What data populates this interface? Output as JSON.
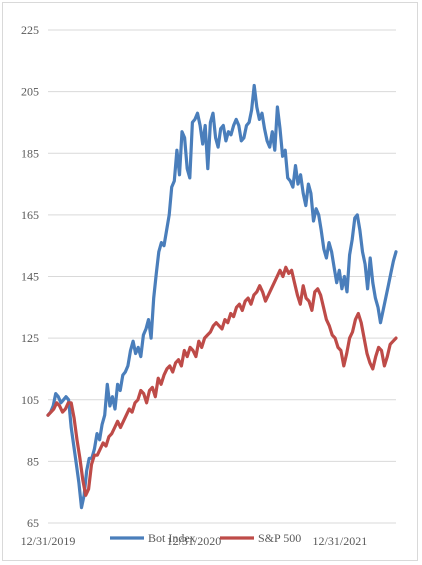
{
  "chart_data": {
    "type": "line",
    "title": "",
    "xlabel": "",
    "ylabel": "",
    "ylim": [
      65,
      225
    ],
    "y_ticks": [
      65,
      85,
      105,
      125,
      145,
      165,
      185,
      205,
      225
    ],
    "y_tick_labels": [
      "65",
      "85",
      "105",
      "125",
      "145",
      "165",
      "185",
      "205",
      "225"
    ],
    "x_tick_labels": [
      "12/31/2019",
      "12/31/2020",
      "12/31/2021"
    ],
    "x_tick_positions": [
      0,
      52,
      104
    ],
    "x_max_period": 124,
    "grid": true,
    "legend_position": "bottom",
    "series": [
      {
        "name": "Bot Index",
        "color": "#4a7ebb",
        "values": [
          100,
          101,
          103,
          107,
          106,
          104,
          105,
          106,
          105,
          96,
          90,
          84,
          78,
          70,
          74,
          82,
          86,
          86,
          89,
          94,
          92,
          97,
          100,
          110,
          103,
          106,
          102,
          110,
          108,
          113,
          114,
          116,
          121,
          124,
          120,
          122,
          119,
          126,
          128,
          131,
          125,
          138,
          146,
          153,
          156,
          155,
          160,
          165,
          174,
          176,
          186,
          178,
          192,
          190,
          180,
          177,
          195,
          196,
          198,
          194,
          188,
          194,
          180,
          195,
          198,
          190,
          187,
          193,
          194,
          189,
          192,
          191,
          194,
          196,
          194,
          189,
          190,
          194,
          195,
          199,
          207,
          200,
          196,
          198,
          193,
          189,
          187,
          192,
          186,
          200,
          193,
          184,
          186,
          177,
          176,
          174,
          181,
          175,
          178,
          172,
          168,
          175,
          172,
          163,
          167,
          165,
          160,
          154,
          151,
          156,
          153,
          148,
          143,
          147,
          141,
          145,
          140,
          152,
          157,
          164,
          165,
          160,
          153,
          149,
          141,
          151,
          143,
          138,
          135,
          130,
          134,
          138,
          142,
          146,
          150,
          153
        ]
      },
      {
        "name": "S&P 500",
        "color": "#be4b48",
        "values": [
          100,
          101,
          102,
          104,
          103,
          101,
          102,
          104,
          104,
          99,
          92,
          86,
          79,
          74,
          76,
          84,
          87,
          87,
          89,
          91,
          90,
          93,
          94,
          96,
          98,
          96,
          98,
          100,
          102,
          101,
          104,
          105,
          108,
          107,
          104,
          108,
          109,
          106,
          112,
          110,
          113,
          115,
          116,
          114,
          117,
          118,
          116,
          121,
          119,
          122,
          121,
          119,
          124,
          122,
          125,
          126,
          127,
          129,
          130,
          129,
          128,
          131,
          130,
          133,
          132,
          135,
          136,
          134,
          137,
          138,
          136,
          139,
          140,
          142,
          140,
          137,
          139,
          141,
          143,
          145,
          147,
          145,
          148,
          146,
          147,
          143,
          139,
          136,
          142,
          138,
          137,
          134,
          140,
          141,
          139,
          135,
          131,
          129,
          126,
          125,
          122,
          121,
          116,
          120,
          125,
          127,
          131,
          133,
          130,
          125,
          120,
          117,
          115,
          119,
          122,
          121,
          116,
          119,
          123,
          124,
          125
        ]
      }
    ]
  }
}
